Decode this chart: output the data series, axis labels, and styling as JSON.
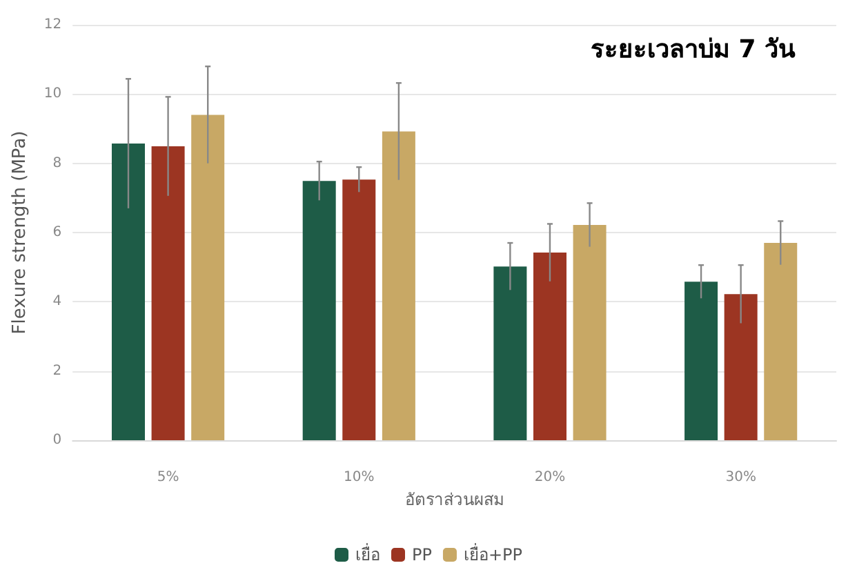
{
  "chart_data": {
    "type": "bar",
    "title": "ระยะเวลาบ่ม 7 วัน",
    "xlabel": "อัตราส่วนผสม",
    "ylabel": "Flexure strength (MPa)",
    "categories": [
      "5%",
      "10%",
      "20%",
      "30%"
    ],
    "series": [
      {
        "name": "เยื่อ",
        "color": "#1e5c47",
        "values": [
          8.57,
          7.49,
          5.02,
          4.58
        ],
        "errors": [
          1.87,
          0.56,
          0.68,
          0.48
        ]
      },
      {
        "name": "PP",
        "color": "#9c3522",
        "values": [
          8.49,
          7.53,
          5.42,
          4.22
        ],
        "errors": [
          1.43,
          0.36,
          0.83,
          0.84
        ]
      },
      {
        "name": "เยื่อ+PP",
        "color": "#c8a865",
        "values": [
          9.4,
          8.92,
          6.22,
          5.7
        ],
        "errors": [
          1.4,
          1.4,
          0.63,
          0.63
        ]
      }
    ],
    "ylim": [
      0,
      12
    ],
    "yticks": [
      0,
      2,
      4,
      6,
      8,
      10,
      12
    ],
    "grid": "y",
    "legend": "bottom"
  }
}
